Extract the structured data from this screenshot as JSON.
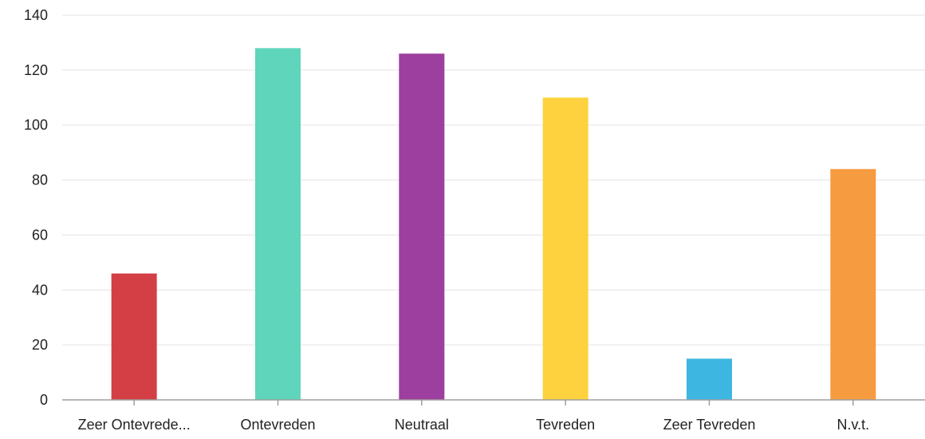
{
  "chart_data": {
    "type": "bar",
    "title": "",
    "xlabel": "",
    "ylabel": "",
    "ylim": [
      0,
      140
    ],
    "yticks": [
      0,
      20,
      40,
      60,
      80,
      100,
      120,
      140
    ],
    "grid": true,
    "legend": "none",
    "categories": [
      "Zeer Ontevrede...",
      "Ontevreden",
      "Neutraal",
      "Tevreden",
      "Zeer Tevreden",
      "N.v.t."
    ],
    "values": [
      46,
      128,
      126,
      110,
      15,
      84
    ],
    "colors": [
      "#d33f44",
      "#5fd5bb",
      "#9d3f9f",
      "#fed23e",
      "#3db6e2",
      "#f69b40"
    ]
  }
}
